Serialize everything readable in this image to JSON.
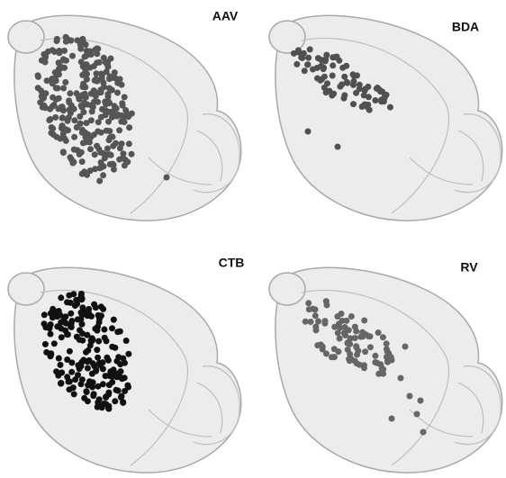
{
  "panels": [
    {
      "label": "AAV"
    },
    {
      "label": "BDA"
    },
    {
      "label": "CTB"
    },
    {
      "label": "RV"
    }
  ]
}
